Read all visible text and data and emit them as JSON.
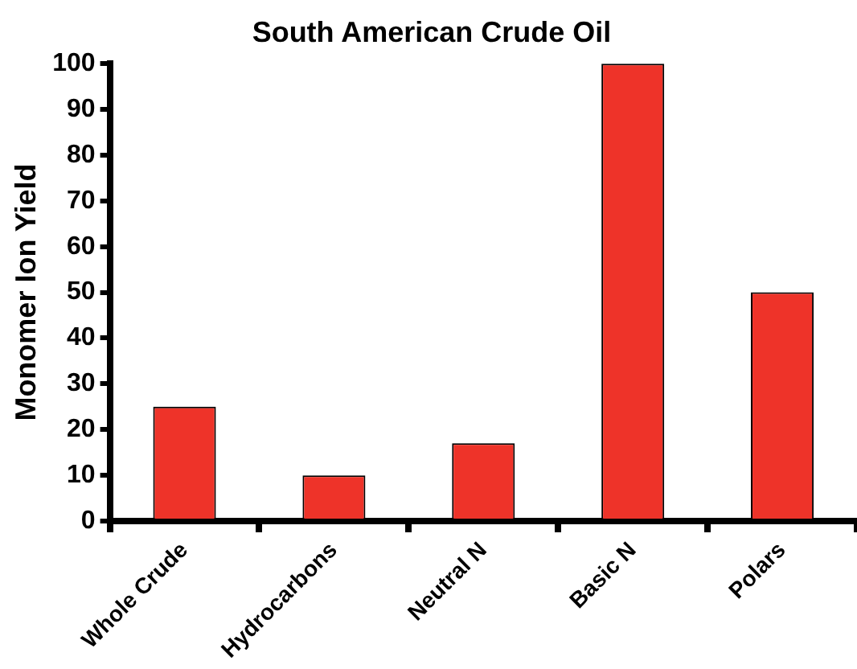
{
  "chart_data": {
    "type": "bar",
    "title": "South American Crude Oil",
    "ylabel": "Monomer Ion Yield",
    "categories": [
      "Whole Crude",
      "Hydrocarbons",
      "Neutral N",
      "Basic N",
      "Polars"
    ],
    "values": [
      25,
      10,
      17,
      100,
      50
    ],
    "color": "#ee3329",
    "ylim": [
      0,
      100
    ],
    "yticks": [
      0,
      10,
      20,
      30,
      40,
      50,
      60,
      70,
      80,
      90,
      100
    ],
    "grid": false,
    "legend": false
  }
}
